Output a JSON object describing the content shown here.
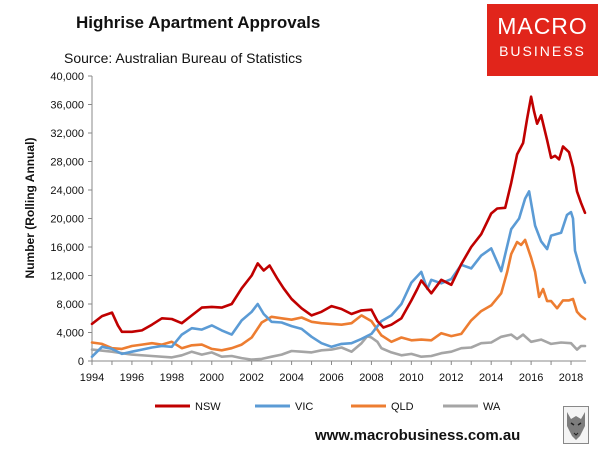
{
  "chart_data": {
    "type": "line",
    "title": "Highrise Apartment Approvals",
    "subtitle": "Source: Australian Bureau of Statistics",
    "ylabel": "Number (Rolling Annual)",
    "xlabel": "",
    "xlim": [
      1994,
      2018.75
    ],
    "ylim": [
      0,
      40000
    ],
    "xticks": [
      1994,
      1996,
      1998,
      2000,
      2002,
      2004,
      2006,
      2008,
      2010,
      2012,
      2014,
      2016,
      2018
    ],
    "yticks": [
      0,
      4000,
      8000,
      12000,
      16000,
      20000,
      24000,
      28000,
      32000,
      36000,
      40000
    ],
    "ytick_labels": [
      "0",
      "4,000",
      "8,000",
      "12,000",
      "16,000",
      "20,000",
      "24,000",
      "28,000",
      "32,000",
      "36,000",
      "40,000"
    ],
    "grid": false,
    "legend_position": "bottom",
    "series": [
      {
        "name": "NSW",
        "color": "#c00000",
        "points": [
          [
            1994,
            5200
          ],
          [
            1994.5,
            6300
          ],
          [
            1995,
            6800
          ],
          [
            1995.3,
            5000
          ],
          [
            1995.5,
            4100
          ],
          [
            1996,
            4100
          ],
          [
            1996.5,
            4300
          ],
          [
            1997,
            5100
          ],
          [
            1997.5,
            6000
          ],
          [
            1998,
            5900
          ],
          [
            1998.5,
            5300
          ],
          [
            1999,
            6400
          ],
          [
            1999.5,
            7500
          ],
          [
            2000,
            7600
          ],
          [
            2000.5,
            7500
          ],
          [
            2001,
            8000
          ],
          [
            2001.5,
            10200
          ],
          [
            2002,
            12000
          ],
          [
            2002.3,
            13700
          ],
          [
            2002.6,
            12700
          ],
          [
            2002.9,
            13400
          ],
          [
            2003.3,
            11500
          ],
          [
            2003.6,
            10200
          ],
          [
            2004,
            8700
          ],
          [
            2004.5,
            7400
          ],
          [
            2005,
            6400
          ],
          [
            2005.5,
            6900
          ],
          [
            2006,
            7700
          ],
          [
            2006.5,
            7300
          ],
          [
            2007,
            6600
          ],
          [
            2007.5,
            7100
          ],
          [
            2008,
            7200
          ],
          [
            2008.3,
            5600
          ],
          [
            2008.6,
            4700
          ],
          [
            2009,
            5100
          ],
          [
            2009.5,
            6000
          ],
          [
            2010,
            8500
          ],
          [
            2010.3,
            10100
          ],
          [
            2010.5,
            11300
          ],
          [
            2011,
            9500
          ],
          [
            2011.5,
            11400
          ],
          [
            2012,
            10700
          ],
          [
            2012.5,
            13600
          ],
          [
            2013,
            16000
          ],
          [
            2013.5,
            17800
          ],
          [
            2014,
            20700
          ],
          [
            2014.3,
            21400
          ],
          [
            2014.7,
            21500
          ],
          [
            2015,
            25000
          ],
          [
            2015.3,
            29000
          ],
          [
            2015.6,
            30600
          ],
          [
            2015.8,
            34000
          ],
          [
            2016,
            37100
          ],
          [
            2016.15,
            35000
          ],
          [
            2016.3,
            33300
          ],
          [
            2016.5,
            34500
          ],
          [
            2016.8,
            31000
          ],
          [
            2017,
            28500
          ],
          [
            2017.2,
            28800
          ],
          [
            2017.4,
            28300
          ],
          [
            2017.6,
            30100
          ],
          [
            2017.9,
            29300
          ],
          [
            2018.1,
            27200
          ],
          [
            2018.3,
            23800
          ],
          [
            2018.5,
            22200
          ],
          [
            2018.7,
            20800
          ]
        ]
      },
      {
        "name": "VIC",
        "color": "#5b9bd5",
        "points": [
          [
            1994,
            600
          ],
          [
            1994.5,
            2000
          ],
          [
            1995,
            1700
          ],
          [
            1995.5,
            1000
          ],
          [
            1996,
            1300
          ],
          [
            1996.5,
            1600
          ],
          [
            1997,
            1900
          ],
          [
            1997.5,
            2100
          ],
          [
            1998,
            2000
          ],
          [
            1998.5,
            3700
          ],
          [
            1999,
            4600
          ],
          [
            1999.5,
            4400
          ],
          [
            2000,
            5000
          ],
          [
            2000.5,
            4300
          ],
          [
            2001,
            3700
          ],
          [
            2001.5,
            5700
          ],
          [
            2002,
            6900
          ],
          [
            2002.3,
            8000
          ],
          [
            2002.6,
            6600
          ],
          [
            2003,
            5500
          ],
          [
            2003.5,
            5400
          ],
          [
            2004,
            4900
          ],
          [
            2004.5,
            4500
          ],
          [
            2005,
            3400
          ],
          [
            2005.5,
            2500
          ],
          [
            2006,
            2000
          ],
          [
            2006.5,
            2400
          ],
          [
            2007,
            2500
          ],
          [
            2007.5,
            3100
          ],
          [
            2008,
            3800
          ],
          [
            2008.5,
            5600
          ],
          [
            2009,
            6400
          ],
          [
            2009.5,
            8000
          ],
          [
            2010,
            11000
          ],
          [
            2010.5,
            12500
          ],
          [
            2010.8,
            10100
          ],
          [
            2011,
            11400
          ],
          [
            2011.5,
            10900
          ],
          [
            2012,
            11500
          ],
          [
            2012.5,
            13500
          ],
          [
            2013,
            13000
          ],
          [
            2013.5,
            14800
          ],
          [
            2014,
            15800
          ],
          [
            2014.5,
            12600
          ],
          [
            2015,
            18500
          ],
          [
            2015.4,
            20000
          ],
          [
            2015.7,
            22800
          ],
          [
            2015.9,
            23800
          ],
          [
            2016.2,
            19000
          ],
          [
            2016.5,
            16800
          ],
          [
            2016.8,
            15700
          ],
          [
            2017,
            17600
          ],
          [
            2017.5,
            18000
          ],
          [
            2017.8,
            20500
          ],
          [
            2018,
            20900
          ],
          [
            2018.1,
            20000
          ],
          [
            2018.2,
            15500
          ],
          [
            2018.5,
            12500
          ],
          [
            2018.7,
            11000
          ]
        ]
      },
      {
        "name": "QLD",
        "color": "#ed7d31",
        "points": [
          [
            1994,
            2600
          ],
          [
            1994.5,
            2400
          ],
          [
            1995,
            1800
          ],
          [
            1995.5,
            1700
          ],
          [
            1996,
            2100
          ],
          [
            1996.5,
            2300
          ],
          [
            1997,
            2500
          ],
          [
            1997.5,
            2300
          ],
          [
            1998,
            2700
          ],
          [
            1998.5,
            1800
          ],
          [
            1999,
            2200
          ],
          [
            1999.5,
            2300
          ],
          [
            2000,
            1700
          ],
          [
            2000.5,
            1500
          ],
          [
            2001,
            1800
          ],
          [
            2001.5,
            2300
          ],
          [
            2002,
            3300
          ],
          [
            2002.5,
            5400
          ],
          [
            2003,
            6200
          ],
          [
            2003.5,
            6000
          ],
          [
            2004,
            5800
          ],
          [
            2004.5,
            6100
          ],
          [
            2005,
            5500
          ],
          [
            2005.5,
            5300
          ],
          [
            2006,
            5200
          ],
          [
            2006.5,
            5100
          ],
          [
            2007,
            5300
          ],
          [
            2007.5,
            6400
          ],
          [
            2008,
            5600
          ],
          [
            2008.5,
            3600
          ],
          [
            2009,
            2700
          ],
          [
            2009.5,
            3300
          ],
          [
            2010,
            2900
          ],
          [
            2010.5,
            3000
          ],
          [
            2011,
            2900
          ],
          [
            2011.5,
            3900
          ],
          [
            2012,
            3500
          ],
          [
            2012.5,
            3800
          ],
          [
            2013,
            5700
          ],
          [
            2013.5,
            7000
          ],
          [
            2014,
            7800
          ],
          [
            2014.5,
            9500
          ],
          [
            2014.8,
            12500
          ],
          [
            2015,
            15000
          ],
          [
            2015.3,
            16700
          ],
          [
            2015.5,
            16300
          ],
          [
            2015.7,
            17000
          ],
          [
            2016,
            14500
          ],
          [
            2016.2,
            12500
          ],
          [
            2016.4,
            9000
          ],
          [
            2016.6,
            10100
          ],
          [
            2016.8,
            8400
          ],
          [
            2017,
            8400
          ],
          [
            2017.3,
            7400
          ],
          [
            2017.6,
            8500
          ],
          [
            2017.9,
            8500
          ],
          [
            2018.1,
            8700
          ],
          [
            2018.3,
            6900
          ],
          [
            2018.5,
            6300
          ],
          [
            2018.7,
            5900
          ]
        ]
      },
      {
        "name": "WA",
        "color": "#a5a5a5",
        "points": [
          [
            1994,
            1600
          ],
          [
            1995,
            1300
          ],
          [
            1996,
            900
          ],
          [
            1997,
            700
          ],
          [
            1998,
            500
          ],
          [
            1998.5,
            800
          ],
          [
            1999,
            1300
          ],
          [
            1999.5,
            900
          ],
          [
            2000,
            1200
          ],
          [
            2000.5,
            600
          ],
          [
            2001,
            700
          ],
          [
            2001.5,
            400
          ],
          [
            2002,
            200
          ],
          [
            2002.5,
            300
          ],
          [
            2003,
            600
          ],
          [
            2003.5,
            900
          ],
          [
            2004,
            1400
          ],
          [
            2004.5,
            1300
          ],
          [
            2005,
            1200
          ],
          [
            2005.5,
            1500
          ],
          [
            2006,
            1600
          ],
          [
            2006.5,
            1900
          ],
          [
            2007,
            1300
          ],
          [
            2007.5,
            2500
          ],
          [
            2007.8,
            3500
          ],
          [
            2008,
            3300
          ],
          [
            2008.3,
            2700
          ],
          [
            2008.5,
            1800
          ],
          [
            2009,
            1200
          ],
          [
            2009.5,
            800
          ],
          [
            2010,
            1000
          ],
          [
            2010.5,
            600
          ],
          [
            2011,
            700
          ],
          [
            2011.5,
            1100
          ],
          [
            2012,
            1300
          ],
          [
            2012.5,
            1800
          ],
          [
            2013,
            1900
          ],
          [
            2013.5,
            2500
          ],
          [
            2014,
            2600
          ],
          [
            2014.5,
            3400
          ],
          [
            2015,
            3700
          ],
          [
            2015.3,
            3100
          ],
          [
            2015.6,
            3700
          ],
          [
            2016,
            2700
          ],
          [
            2016.5,
            3000
          ],
          [
            2017,
            2400
          ],
          [
            2017.5,
            2600
          ],
          [
            2018,
            2500
          ],
          [
            2018.3,
            1600
          ],
          [
            2018.5,
            2100
          ],
          [
            2018.7,
            2100
          ]
        ]
      }
    ]
  },
  "logo": {
    "line1": "MACRO",
    "line2": "BUSINESS"
  },
  "website": "www.macrobusiness.com.au"
}
